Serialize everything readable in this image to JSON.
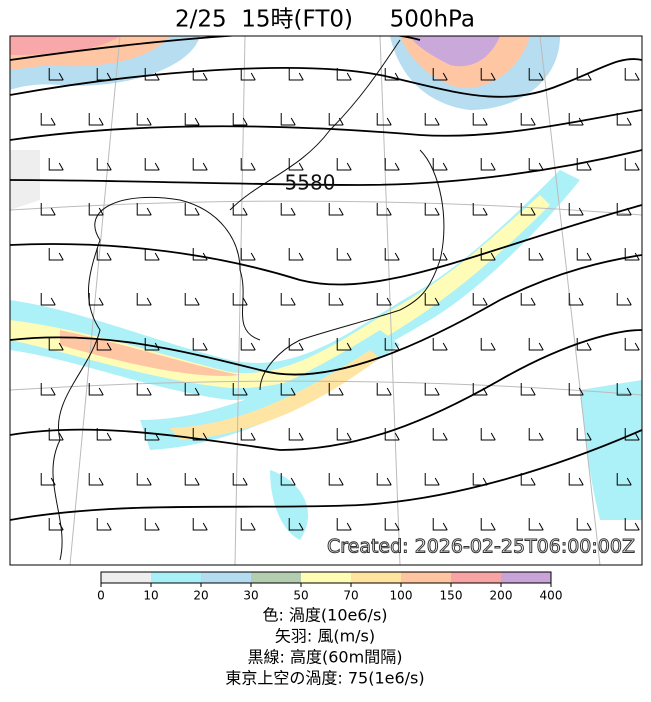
{
  "title": "2/25  15時(FT0)     500hPa",
  "map": {
    "contour_label": "5580",
    "created": "Created: 2026-02-25T06:00:00Z"
  },
  "colorbar": {
    "ticks": [
      0,
      10,
      20,
      30,
      50,
      70,
      100,
      150,
      200,
      400
    ],
    "colors": [
      "#eeeeee",
      "#a8f0f8",
      "#b4dcf0",
      "#b4ccb0",
      "#fffcb4",
      "#ffe4a0",
      "#ffc4a0",
      "#f8a4a4",
      "#c8a4d8"
    ]
  },
  "captions": [
    "色: 渦度(10e6/s)",
    "矢羽: 風(m/s)",
    "黒線: 高度(60m間隔)",
    "東京上空の渦度: 75(1e6/s)"
  ]
}
